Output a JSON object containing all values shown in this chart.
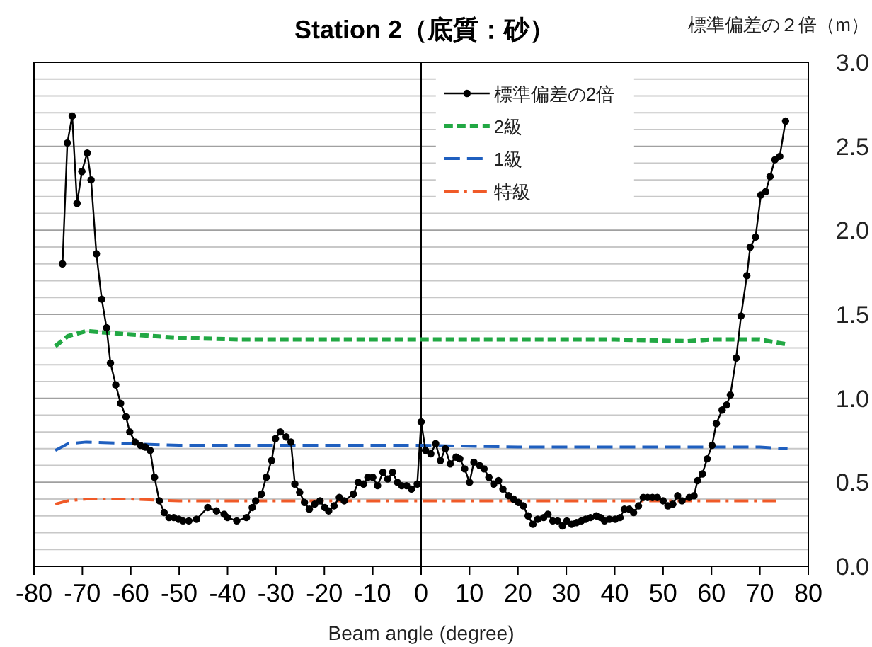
{
  "chart_data": {
    "type": "line",
    "title": "Station 2（底質：砂）",
    "xlabel": "Beam angle (degree)",
    "ylabel": "標準偏差の２倍（m）",
    "xlim": [
      -80,
      80
    ],
    "xticks": [
      -80,
      -70,
      -60,
      -50,
      -40,
      -30,
      -20,
      -10,
      0,
      10,
      20,
      30,
      40,
      50,
      60,
      70,
      80
    ],
    "ylim": [
      0,
      3
    ],
    "yticks": [
      {
        "value": 0,
        "label": "0.0"
      },
      {
        "value": 0.1,
        "label": null
      },
      {
        "value": 0.2,
        "label": null
      },
      {
        "value": 0.3,
        "label": null
      },
      {
        "value": 0.4,
        "label": null
      },
      {
        "value": 0.5,
        "label": "0.5"
      },
      {
        "value": 0.6,
        "label": null
      },
      {
        "value": 0.7,
        "label": null
      },
      {
        "value": 0.8,
        "label": null
      },
      {
        "value": 0.9,
        "label": null
      },
      {
        "value": 1,
        "label": "1.0"
      },
      {
        "value": 1.1,
        "label": null
      },
      {
        "value": 1.2,
        "label": null
      },
      {
        "value": 1.3,
        "label": null
      },
      {
        "value": 1.4,
        "label": null
      },
      {
        "value": 1.5,
        "label": "1.5"
      },
      {
        "value": 1.6,
        "label": null
      },
      {
        "value": 1.7,
        "label": null
      },
      {
        "value": 1.8,
        "label": null
      },
      {
        "value": 1.9,
        "label": null
      },
      {
        "value": 2,
        "label": "2.0"
      },
      {
        "value": 2.1,
        "label": null
      },
      {
        "value": 2.2,
        "label": null
      },
      {
        "value": 2.3,
        "label": null
      },
      {
        "value": 2.4,
        "label": null
      },
      {
        "value": 2.5,
        "label": "2.5"
      },
      {
        "value": 2.6,
        "label": null
      },
      {
        "value": 2.7,
        "label": null
      },
      {
        "value": 2.8,
        "label": null
      },
      {
        "value": 2.9,
        "label": null
      },
      {
        "value": 3,
        "label": "3.0"
      }
    ],
    "grid": "y",
    "legend": "top",
    "ref_lines": [
      {
        "axis": "x",
        "value": 0,
        "color": "#000000"
      }
    ],
    "series": [
      {
        "name": "標準偏差の2倍",
        "color": "#000000",
        "marker": "circle",
        "line_style": "solid",
        "x": [
          -74.1,
          -73.1,
          -72.1,
          -71.1,
          -70.1,
          -69.0,
          -68.2,
          -67.1,
          -66.0,
          -65.0,
          -64.2,
          -63.1,
          -62.1,
          -61.0,
          -60.2,
          -59.1,
          -58.0,
          -57.0,
          -56.0,
          -55.1,
          -54.1,
          -53.1,
          -52.1,
          -51.1,
          -50.1,
          -49.2,
          -48.0,
          -46.4,
          -44.1,
          -42.3,
          -40.7,
          -40.0,
          -38.1,
          -36.1,
          -34.9,
          -34.2,
          -33.0,
          -32.0,
          -30.9,
          -30.1,
          -29.1,
          -27.9,
          -26.9,
          -26.1,
          -25.1,
          -24.1,
          -23.1,
          -22.0,
          -20.9,
          -19.9,
          -19.1,
          -18.0,
          -16.9,
          -15.9,
          -14.0,
          -13.0,
          -11.9,
          -11.0,
          -10.0,
          -9.0,
          -7.9,
          -6.9,
          -5.9,
          -4.9,
          -4.0,
          -3.0,
          -2.0,
          -0.8,
          0,
          0.9,
          2.0,
          3.0,
          4.0,
          5.0,
          6.0,
          7.2,
          8.0,
          9.0,
          10.0,
          10.9,
          12.1,
          13.0,
          14.0,
          15.0,
          16.0,
          16.9,
          18.1,
          19.1,
          20.1,
          21.1,
          22.1,
          23.1,
          24.1,
          25.3,
          26.2,
          27.2,
          28.2,
          29.2,
          30.1,
          31.1,
          32.1,
          33.1,
          34.0,
          35.0,
          36.2,
          37.1,
          37.9,
          38.9,
          40.1,
          41.1,
          42.0,
          43.0,
          43.9,
          44.9,
          45.9,
          46.8,
          47.8,
          48.8,
          50.0,
          51.0,
          52.0,
          53.0,
          53.9,
          55.4,
          56.4,
          57.1,
          58.1,
          59.1,
          60.1,
          61.0,
          62.2,
          63.1,
          63.9,
          65.1,
          66.1,
          67.3,
          68.0,
          69.1,
          70.2,
          71.2,
          72.1,
          73.1,
          74.1,
          75.3
        ],
        "values": [
          1.8,
          2.52,
          2.68,
          2.16,
          2.35,
          2.46,
          2.3,
          1.86,
          1.59,
          1.42,
          1.21,
          1.08,
          0.97,
          0.89,
          0.8,
          0.74,
          0.72,
          0.71,
          0.69,
          0.53,
          0.39,
          0.32,
          0.29,
          0.29,
          0.28,
          0.27,
          0.27,
          0.28,
          0.35,
          0.33,
          0.31,
          0.29,
          0.27,
          0.29,
          0.35,
          0.39,
          0.43,
          0.53,
          0.63,
          0.76,
          0.8,
          0.77,
          0.74,
          0.49,
          0.44,
          0.38,
          0.34,
          0.37,
          0.39,
          0.35,
          0.33,
          0.36,
          0.41,
          0.39,
          0.43,
          0.5,
          0.49,
          0.53,
          0.53,
          0.48,
          0.56,
          0.52,
          0.56,
          0.5,
          0.48,
          0.48,
          0.46,
          0.49,
          0.86,
          0.69,
          0.67,
          0.73,
          0.63,
          0.7,
          0.61,
          0.65,
          0.64,
          0.58,
          0.5,
          0.62,
          0.6,
          0.58,
          0.53,
          0.49,
          0.51,
          0.46,
          0.42,
          0.4,
          0.38,
          0.36,
          0.3,
          0.25,
          0.28,
          0.29,
          0.31,
          0.27,
          0.27,
          0.24,
          0.27,
          0.25,
          0.26,
          0.27,
          0.28,
          0.29,
          0.3,
          0.29,
          0.27,
          0.28,
          0.28,
          0.29,
          0.34,
          0.34,
          0.32,
          0.36,
          0.41,
          0.41,
          0.41,
          0.41,
          0.39,
          0.36,
          0.37,
          0.42,
          0.39,
          0.41,
          0.42,
          0.51,
          0.55,
          0.64,
          0.72,
          0.85,
          0.93,
          0.96,
          1.02,
          1.24,
          1.49,
          1.73,
          1.9,
          1.96,
          2.21,
          2.23,
          2.32,
          2.42,
          2.44,
          2.65
        ]
      },
      {
        "name": "2級",
        "color": "#22a844",
        "marker": "none",
        "line_style": "dashed",
        "x": [
          -75.6,
          -73,
          -69.2,
          -60,
          -50,
          -37.1,
          -20,
          0,
          20,
          40,
          55,
          60,
          70,
          75.7
        ],
        "values": [
          1.31,
          1.37,
          1.4,
          1.38,
          1.36,
          1.35,
          1.35,
          1.35,
          1.35,
          1.35,
          1.34,
          1.35,
          1.35,
          1.32
        ]
      },
      {
        "name": "1級",
        "color": "#1f5fbf",
        "marker": "none",
        "line_style": "longdashed",
        "x": [
          -75.6,
          -73,
          -69.2,
          -60,
          -50,
          -37.1,
          -20,
          0,
          20,
          40,
          55,
          60,
          70,
          75.7
        ],
        "values": [
          0.69,
          0.73,
          0.74,
          0.73,
          0.72,
          0.72,
          0.72,
          0.72,
          0.71,
          0.71,
          0.71,
          0.71,
          0.71,
          0.7
        ]
      },
      {
        "name": "特級",
        "color": "#f05a28",
        "marker": "none",
        "line_style": "dashdot",
        "x": [
          -75.6,
          -73,
          -69.2,
          -60,
          -50,
          -37.1,
          -20,
          0,
          20,
          40,
          55,
          60,
          73.3
        ],
        "values": [
          0.37,
          0.39,
          0.4,
          0.4,
          0.39,
          0.39,
          0.39,
          0.39,
          0.39,
          0.39,
          0.39,
          0.39,
          0.39
        ]
      }
    ]
  }
}
